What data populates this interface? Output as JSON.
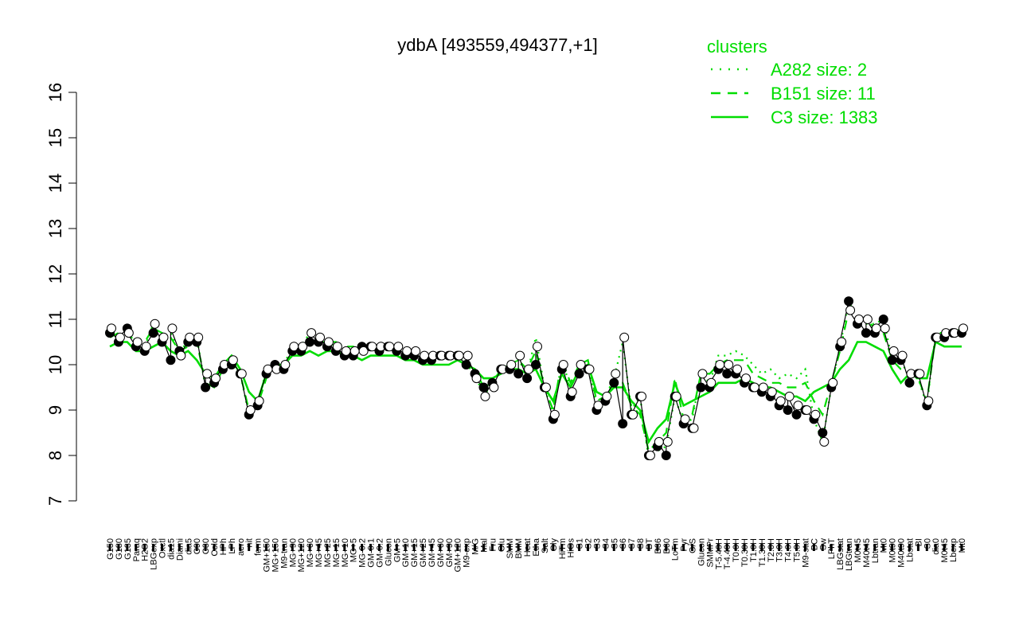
{
  "chart_data": {
    "type": "line",
    "title": "ydbA [493559,494377,+1]",
    "xlabel": "",
    "ylabel": "",
    "ylim": [
      7,
      16
    ],
    "yticks": [
      7,
      8,
      9,
      10,
      11,
      12,
      13,
      14,
      15,
      16
    ],
    "xticklabels": [
      "G150",
      "G180",
      "G135",
      "Paraq",
      "H2O2",
      "LBGexp",
      "Oxctl",
      "dia15",
      "Diami",
      "dia5",
      "C90",
      "C30",
      "Cold",
      "HPh",
      "LPh",
      "aero",
      "nit",
      "ferm",
      "GM+150",
      "MG+150",
      "M9-tran",
      "MG+90",
      "MG+120",
      "MG+60",
      "MG+45",
      "MG+25",
      "MG+15",
      "MG+10",
      "MG+5",
      "MG-0.2",
      "GM-0.1",
      "GM-0.2",
      "Glucon",
      "GM+5",
      "GM+10",
      "GM+15",
      "GM+25",
      "GM+45",
      "GM+60",
      "GM+90",
      "GM+120",
      "M9-exp",
      "M/G",
      "Mal",
      "Fru",
      "Glu",
      "SMM",
      "BMM",
      "Heat",
      "Etha",
      "Salt",
      "Gly",
      "HiTm",
      "HiOs",
      "S1",
      "S2",
      "S3",
      "S4",
      "S5",
      "S6",
      "S7",
      "S8",
      "BT",
      "B36",
      "B60",
      "LoTm",
      "Pyr",
      "G/S",
      "Glucon",
      "SMMPr",
      "T-5.40H",
      "T-4.40H",
      "T0.0H",
      "T0.30H",
      "T1.0H",
      "T1.30H",
      "T2.0H",
      "T3.0H",
      "T4.0H",
      "T5.0H",
      "M9-stat",
      "BC",
      "Sw",
      "LPhT",
      "LBGstat",
      "LBGtran",
      "M0t45",
      "M40t45",
      "Lbtran",
      "Mt0",
      "M0t90",
      "M40t90",
      "Lbstat",
      "BI",
      "S0",
      "dia0",
      "M0t45",
      "Lbexp",
      "Mt0"
    ],
    "series": [
      {
        "name": "C3 size: 1383",
        "style": "solid",
        "values": [
          10.4,
          10.5,
          10.5,
          10.3,
          10.3,
          10.4,
          10.5,
          10.3,
          10.2,
          10.3,
          10.1,
          9.8,
          9.7,
          10.0,
          10.2,
          9.9,
          9.4,
          9.2,
          9.8,
          10.0,
          10.0,
          10.2,
          10.2,
          10.3,
          10.2,
          10.3,
          10.3,
          10.2,
          10.2,
          10.1,
          10.2,
          10.2,
          10.2,
          10.2,
          10.1,
          10.1,
          10.0,
          10.0,
          10.0,
          10.0,
          10.1,
          10.0,
          9.9,
          9.7,
          9.7,
          9.8,
          9.9,
          9.9,
          9.8,
          9.9,
          9.5,
          9.2,
          9.8,
          9.5,
          9.9,
          10.0,
          9.4,
          9.3,
          9.5,
          9.5,
          9.2,
          9.0,
          8.3,
          8.6,
          8.8,
          9.6,
          9.1,
          9.2,
          9.3,
          9.4,
          9.6,
          9.6,
          9.6,
          9.7,
          9.6,
          9.5,
          9.5,
          9.4,
          9.3,
          9.3,
          9.2,
          9.4,
          9.5,
          9.6,
          9.9,
          10.1,
          10.5,
          10.5,
          10.4,
          10.3,
          9.9,
          9.6,
          9.8,
          9.7,
          9.7,
          10.5,
          10.4,
          10.4,
          10.4
        ]
      },
      {
        "name": "B151 size: 11",
        "style": "dashed",
        "values": [
          10.6,
          10.7,
          10.8,
          10.5,
          10.5,
          10.8,
          10.7,
          10.6,
          10.3,
          10.4,
          10.5,
          9.6,
          9.5,
          9.9,
          10.1,
          9.8,
          9.0,
          9.1,
          9.7,
          9.9,
          9.9,
          10.3,
          10.3,
          10.6,
          10.5,
          10.5,
          10.5,
          10.4,
          10.4,
          10.3,
          10.4,
          10.4,
          10.4,
          10.4,
          10.3,
          10.3,
          10.2,
          10.2,
          10.2,
          10.2,
          10.2,
          10.0,
          9.9,
          9.5,
          9.6,
          9.9,
          10.0,
          10.1,
          9.9,
          10.3,
          9.5,
          9.0,
          10.1,
          9.6,
          10.0,
          10.1,
          9.2,
          9.3,
          9.6,
          9.6,
          9.1,
          8.9,
          8.1,
          8.3,
          8.5,
          9.7,
          8.8,
          8.9,
          9.8,
          9.8,
          10.0,
          10.1,
          10.1,
          10.1,
          9.8,
          9.7,
          9.6,
          9.6,
          9.5,
          9.5,
          9.6,
          9.2,
          8.9,
          9.6,
          10.3,
          11.2,
          11.0,
          11.0,
          10.8,
          10.7,
          10.1,
          9.9,
          9.8,
          9.7,
          9.2,
          10.6,
          10.7,
          10.7,
          10.7
        ]
      },
      {
        "name": "A282 size: 2",
        "style": "dotted",
        "values": [
          10.7,
          10.6,
          10.8,
          10.4,
          10.4,
          10.9,
          10.6,
          10.7,
          10.3,
          10.5,
          10.6,
          9.5,
          9.6,
          10.0,
          10.0,
          9.8,
          8.9,
          9.1,
          9.9,
          10.0,
          10.0,
          10.4,
          10.4,
          10.7,
          10.6,
          10.5,
          10.4,
          10.3,
          10.3,
          10.3,
          10.4,
          10.4,
          10.4,
          10.4,
          10.3,
          10.3,
          10.2,
          10.2,
          10.2,
          10.2,
          10.2,
          10.0,
          9.8,
          9.3,
          9.6,
          9.9,
          10.0,
          10.1,
          9.8,
          10.6,
          9.5,
          8.9,
          10.1,
          9.5,
          9.9,
          10.0,
          9.1,
          9.3,
          9.7,
          10.5,
          9.0,
          9.3,
          7.9,
          8.1,
          8.2,
          9.3,
          8.7,
          8.8,
          9.8,
          9.6,
          10.2,
          10.2,
          10.3,
          10.2,
          10.0,
          9.8,
          9.9,
          9.7,
          9.8,
          9.7,
          9.9,
          8.8,
          8.3,
          9.5,
          10.4,
          11.4,
          11.0,
          10.9,
          10.9,
          11.0,
          10.1,
          10.1,
          9.7,
          9.7,
          9.1,
          10.7,
          10.7,
          10.7,
          10.8
        ]
      }
    ],
    "points": {
      "filled": [
        10.7,
        10.5,
        10.8,
        10.4,
        10.3,
        10.7,
        10.5,
        10.1,
        10.3,
        10.5,
        10.5,
        9.5,
        9.6,
        9.9,
        10.0,
        9.8,
        8.9,
        9.1,
        9.8,
        10.0,
        9.9,
        10.3,
        10.3,
        10.5,
        10.5,
        10.4,
        10.3,
        10.2,
        10.2,
        10.4,
        10.4,
        10.3,
        10.4,
        10.3,
        10.2,
        10.2,
        10.1,
        10.1,
        10.2,
        10.2,
        10.2,
        10.0,
        9.8,
        9.5,
        9.6,
        9.9,
        9.9,
        9.8,
        9.7,
        10.0,
        9.5,
        8.8,
        9.9,
        9.3,
        9.8,
        9.9,
        9.0,
        9.2,
        9.6,
        8.7,
        8.9,
        9.3,
        8.0,
        8.2,
        8.0,
        9.3,
        8.7,
        8.6,
        9.5,
        9.5,
        9.9,
        9.8,
        9.8,
        9.6,
        9.5,
        9.4,
        9.3,
        9.1,
        9.0,
        8.9,
        9.0,
        8.8,
        8.5,
        9.5,
        10.4,
        11.4,
        10.9,
        10.7,
        10.7,
        11.0,
        10.1,
        10.1,
        9.6,
        9.8,
        9.1,
        10.6,
        10.6,
        10.7,
        10.7
      ],
      "open": [
        10.8,
        10.6,
        10.7,
        10.5,
        10.4,
        10.9,
        10.6,
        10.8,
        10.2,
        10.6,
        10.6,
        9.8,
        9.7,
        10.0,
        10.1,
        9.8,
        9.0,
        9.2,
        9.9,
        9.9,
        10.0,
        10.4,
        10.4,
        10.7,
        10.6,
        10.5,
        10.4,
        10.3,
        10.3,
        10.3,
        10.4,
        10.4,
        10.4,
        10.4,
        10.3,
        10.3,
        10.2,
        10.2,
        10.2,
        10.2,
        10.2,
        10.2,
        9.7,
        9.3,
        9.5,
        9.9,
        10.0,
        10.2,
        9.9,
        10.4,
        9.5,
        8.9,
        10.0,
        9.4,
        10.0,
        9.9,
        9.1,
        9.3,
        9.8,
        10.6,
        8.9,
        9.3,
        8.0,
        8.3,
        8.3,
        9.3,
        8.8,
        8.6,
        9.8,
        9.6,
        10.0,
        10.0,
        9.9,
        9.7,
        9.5,
        9.5,
        9.4,
        9.2,
        9.3,
        9.1,
        9.0,
        8.9,
        8.3,
        9.6,
        10.5,
        11.2,
        11.0,
        11.0,
        10.8,
        10.8,
        10.3,
        10.2,
        9.8,
        9.8,
        9.2,
        10.6,
        10.7,
        10.7,
        10.8
      ]
    },
    "legend": {
      "title": "clusters",
      "placement": "top-right",
      "entries": [
        {
          "label": "A282 size: 2",
          "style": "dotted"
        },
        {
          "label": "B151 size: 11",
          "style": "dashed"
        },
        {
          "label": "C3 size: 1383",
          "style": "solid"
        }
      ]
    },
    "colors": {
      "series": "#00dd00",
      "legend_text": "#00dd00",
      "marker_fill": "#000000",
      "marker_open": "#ffffff",
      "axis": "#000000"
    }
  }
}
